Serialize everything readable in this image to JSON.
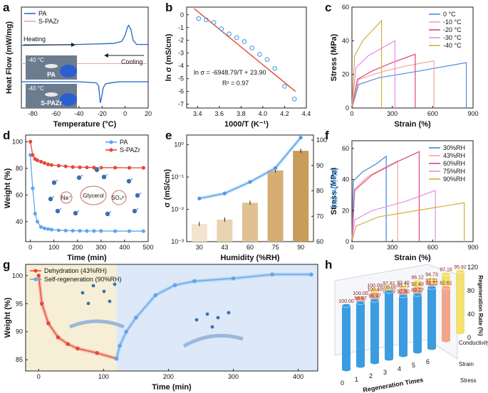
{
  "chart_data": [
    {
      "panel": "a",
      "type": "line",
      "xlabel": "Temperature (°C)",
      "ylabel": "Heat Flow (mW/mg)",
      "xlim": [
        -90,
        20
      ],
      "xticks": [
        -80,
        -60,
        -40,
        -20,
        0,
        20
      ],
      "series": [
        {
          "name": "PA",
          "color": "#2e6fc9",
          "x": [
            -90,
            -40,
            -10,
            -3,
            0,
            2,
            3,
            5,
            7,
            10,
            20
          ],
          "y": [
            0.62,
            0.63,
            0.64,
            0.66,
            0.72,
            0.8,
            0.82,
            0.78,
            0.67,
            0.63,
            0.63
          ]
        },
        {
          "name": "S-PAZr",
          "color": "#2e6fc9",
          "x": [
            -90,
            -40,
            -25,
            -23,
            -21.5,
            -20.5,
            -19,
            -17,
            -12,
            -5,
            20
          ],
          "y": [
            0.26,
            0.26,
            0.25,
            0.22,
            0.05,
            0.1,
            0.2,
            0.24,
            0.25,
            0.26,
            0.26
          ]
        }
      ],
      "annotations": [
        "Heating",
        "Cooling",
        "-40 °C",
        "PA",
        "-40 °C",
        "S-PAZr"
      ]
    },
    {
      "panel": "b",
      "type": "scatter",
      "xlabel": "1000/T (K⁻¹)",
      "ylabel": "ln σ (mS/cm)",
      "xlim": [
        3.3,
        4.4
      ],
      "ylim": [
        -7.3,
        0.6
      ],
      "xticks": [
        3.4,
        3.5,
        3.6,
        3.7,
        3.8,
        3.9,
        4.0,
        4.1,
        4.2,
        4.3,
        4.4
      ],
      "yticks": [
        0,
        -1,
        -2,
        -3,
        -4,
        -5,
        -6,
        -7
      ],
      "x": [
        3.41,
        3.48,
        3.55,
        3.62,
        3.69,
        3.76,
        3.83,
        3.9,
        3.97,
        4.04,
        4.11,
        4.2,
        4.29
      ],
      "y": [
        -0.3,
        -0.4,
        -0.6,
        -1.1,
        -1.5,
        -1.8,
        -2.1,
        -2.6,
        -3.1,
        -3.5,
        -4.2,
        -5.6,
        -6.6
      ],
      "fit": {
        "x": [
          3.37,
          4.3
        ],
        "y": [
          0.48,
          -6.0
        ],
        "color": "#e2533a"
      },
      "annotations": [
        "ln σ = -6948.79/T + 23.90",
        "R² = 0.97"
      ]
    },
    {
      "panel": "c",
      "type": "line",
      "xlabel": "Strain (%)",
      "ylabel": "Stress (MPa)",
      "xlim": [
        0,
        900
      ],
      "ylim": [
        0,
        60
      ],
      "xticks": [
        0,
        300,
        600,
        900
      ],
      "yticks": [
        0,
        20,
        40,
        60
      ],
      "series": [
        {
          "name": "0 °C",
          "color": "#4a8ee0",
          "x": [
            0,
            50,
            200,
            500,
            850,
            850
          ],
          "y": [
            0,
            14,
            18,
            22,
            27,
            0
          ]
        },
        {
          "name": "-10 °C",
          "color": "#f2a79a",
          "x": [
            0,
            50,
            200,
            400,
            610,
            610
          ],
          "y": [
            0,
            17,
            21,
            25,
            28,
            0
          ]
        },
        {
          "name": "-20 °C",
          "color": "#e0457a",
          "x": [
            0,
            40,
            150,
            300,
            470,
            470
          ],
          "y": [
            0,
            17,
            22,
            27,
            32,
            0
          ]
        },
        {
          "name": "-30 °C",
          "color": "#e98be8",
          "x": [
            0,
            30,
            120,
            230,
            320,
            320
          ],
          "y": [
            0,
            24,
            31,
            36,
            40,
            0
          ]
        },
        {
          "name": "-40 °C",
          "color": "#d0b03a",
          "x": [
            0,
            20,
            80,
            150,
            220,
            220
          ],
          "y": [
            0,
            31,
            40,
            46,
            52,
            0
          ]
        }
      ]
    },
    {
      "panel": "d",
      "type": "line",
      "xlabel": "Time (min)",
      "ylabel": "Weight (%)",
      "xlim": [
        -20,
        500
      ],
      "ylim": [
        25,
        105
      ],
      "xticks": [
        0,
        100,
        200,
        300,
        400,
        500
      ],
      "yticks": [
        30,
        40,
        50,
        60,
        70,
        80,
        90,
        100
      ],
      "series": [
        {
          "name": "PA",
          "color": "#5fa5ec",
          "x": [
            0,
            10,
            20,
            30,
            45,
            60,
            75,
            90,
            120,
            150,
            180,
            210,
            240,
            270,
            300,
            360,
            420,
            480
          ],
          "y": [
            90,
            65,
            46,
            40,
            36,
            35,
            34.5,
            34,
            33.5,
            33.3,
            33.2,
            33.1,
            33,
            33,
            33,
            32.9,
            32.9,
            32.9
          ]
        },
        {
          "name": "S-PAZr",
          "color": "#e8473a",
          "x": [
            0,
            10,
            20,
            30,
            45,
            60,
            75,
            90,
            120,
            150,
            180,
            210,
            240,
            270,
            300,
            360,
            420,
            480
          ],
          "y": [
            100,
            90,
            87,
            86,
            85,
            84,
            83,
            82.5,
            82,
            81.5,
            81,
            80.8,
            80.7,
            80.6,
            80.5,
            80.5,
            80.4,
            80.4
          ]
        }
      ],
      "annotations": [
        "Glycerol",
        "Na⁺",
        "SO₄²⁻"
      ]
    },
    {
      "panel": "e",
      "type": "bar",
      "xlabel": "Humidity (%RH)",
      "ylabel": "σ (mS/cm)",
      "ylabel_right": "Weight (%)",
      "categories": [
        "30",
        "43",
        "60",
        "75",
        "90"
      ],
      "bar_values": [
        0.0035,
        0.0048,
        0.016,
        0.16,
        0.65
      ],
      "y_log_range": [
        0.001,
        2
      ],
      "yticks": [
        "10⁻³",
        "10⁻²",
        "10⁻¹",
        "10⁰"
      ],
      "y_right_range": [
        60,
        102
      ],
      "yticks_right": [
        60,
        70,
        80,
        90,
        100
      ],
      "weight_values": [
        77,
        79,
        83.5,
        89,
        101
      ]
    },
    {
      "panel": "f",
      "type": "line",
      "xlabel": "Strain (%)",
      "ylabel": "Stress (MPa)",
      "xlim": [
        0,
        900
      ],
      "ylim": [
        0,
        65
      ],
      "xticks": [
        0,
        300,
        600,
        900
      ],
      "yticks": [
        0,
        20,
        40,
        60
      ],
      "series": [
        {
          "name": "30%RH",
          "color": "#3f86d9",
          "x": [
            0,
            10,
            80,
            180,
            255,
            255
          ],
          "y": [
            0,
            39,
            45,
            50,
            55,
            0
          ]
        },
        {
          "name": "43%RH",
          "color": "#f2a79a",
          "x": [
            0,
            20,
            120,
            250,
            340,
            340
          ],
          "y": [
            0,
            34,
            42,
            48,
            52,
            0
          ]
        },
        {
          "name": "60%RH",
          "color": "#e0457a",
          "x": [
            0,
            20,
            150,
            350,
            500,
            500
          ],
          "y": [
            0,
            33,
            43,
            52,
            58,
            0
          ]
        },
        {
          "name": "75%RH",
          "color": "#e98be8",
          "x": [
            0,
            20,
            150,
            400,
            620,
            620
          ],
          "y": [
            0,
            14,
            20,
            26,
            33,
            0
          ]
        },
        {
          "name": "90%RH",
          "color": "#d0b03a",
          "x": [
            0,
            30,
            200,
            550,
            835,
            835
          ],
          "y": [
            0,
            10,
            16,
            21,
            25,
            0
          ]
        }
      ]
    },
    {
      "panel": "g",
      "type": "line",
      "xlabel": "Time (min)",
      "ylabel": "Weight (%)",
      "xlim": [
        -20,
        430
      ],
      "ylim": [
        83,
        102
      ],
      "xticks": [
        0,
        100,
        200,
        300,
        400
      ],
      "yticks": [
        85,
        90,
        95,
        100
      ],
      "series": [
        {
          "name": "Dehydration (43%RH)",
          "color": "#e8473a",
          "x": [
            0,
            5,
            15,
            30,
            45,
            60,
            90,
            120
          ],
          "y": [
            100,
            95,
            91.5,
            89,
            87.8,
            87,
            86.2,
            85.2
          ]
        },
        {
          "name": "Self-regeneration (90%RH)",
          "color": "#5fa5ec",
          "x": [
            120,
            125,
            135,
            150,
            180,
            210,
            240,
            300,
            360,
            420
          ],
          "y": [
            85.2,
            87.5,
            90,
            92.5,
            96.5,
            98.3,
            99,
            99.5,
            100.2,
            100.2
          ]
        }
      ]
    },
    {
      "panel": "h",
      "type": "bar",
      "xlabel": "Regeneration Times",
      "zlabel": "Regeneration Rate (%)",
      "categories": [
        "0",
        "1",
        "2",
        "3",
        "4",
        "5",
        "6"
      ],
      "depth_categories": [
        "Conductivity",
        "Strain",
        "Stress"
      ],
      "zticks": [
        0,
        40,
        80,
        120
      ],
      "series": [
        {
          "name": "Conductivity",
          "color": "#f2e070",
          "values": [
            100.0,
            97.81,
            93.4,
            96.12,
            94.73,
            97.16,
            95.82
          ]
        },
        {
          "name": "Strain",
          "color": "#f2a58a",
          "values": [
            100.0,
            100.4,
            91.39,
            95.71,
            92.43,
            92.21,
            82.61
          ]
        },
        {
          "name": "Stress",
          "color": "#3b9ce0",
          "values": [
            100.0,
            98.87,
            96.97,
            105.0,
            92.8,
            89.27,
            94.72
          ]
        }
      ]
    }
  ]
}
